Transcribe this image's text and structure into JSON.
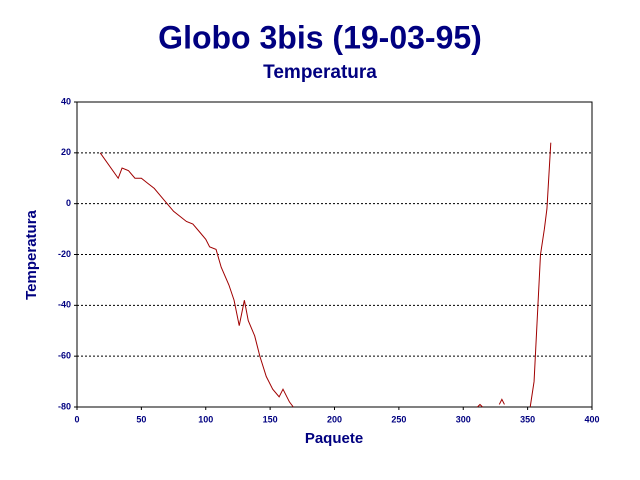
{
  "chart_data": {
    "type": "line",
    "title": "Globo 3bis (19-03-95)",
    "subtitle": "Temperatura",
    "xlabel": "Paquete",
    "ylabel": "Temperatura",
    "x": [
      18,
      32,
      35,
      40,
      45,
      50,
      55,
      60,
      65,
      70,
      75,
      80,
      85,
      90,
      95,
      100,
      103,
      108,
      112,
      118,
      122,
      126,
      130,
      133,
      138,
      142,
      147,
      152,
      157,
      160,
      165,
      168,
      null,
      311,
      313,
      315,
      null,
      328,
      330,
      332,
      null,
      352,
      355,
      357,
      360,
      363,
      365,
      368
    ],
    "values": [
      20,
      10,
      14,
      13,
      10,
      10,
      8,
      6,
      3,
      0,
      -3,
      -5,
      -7,
      -8,
      -11,
      -14,
      -17,
      -18,
      -25,
      -32,
      -38,
      -48,
      -38,
      -46,
      -52,
      -60,
      -68,
      -73,
      -76,
      -73,
      -78,
      -80,
      null,
      -80,
      -79,
      -80,
      null,
      -79,
      -77,
      -79,
      null,
      -80,
      -70,
      -50,
      -20,
      -10,
      -2,
      24
    ],
    "color": "#a00000",
    "xlim": [
      0,
      400
    ],
    "xticks": [
      0,
      50,
      100,
      150,
      200,
      250,
      300,
      350,
      400
    ],
    "ylim": [
      -80,
      40
    ],
    "yticks": [
      -80,
      -60,
      -40,
      -20,
      0,
      20,
      40
    ],
    "grid": true
  }
}
